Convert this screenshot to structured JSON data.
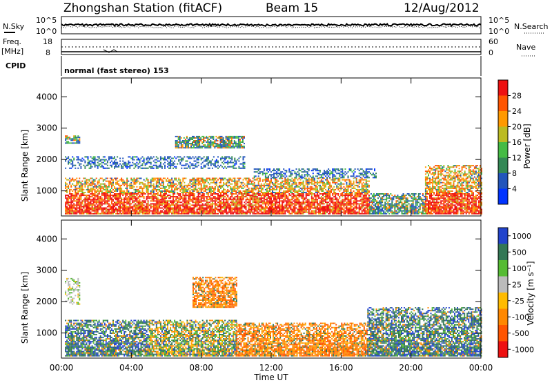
{
  "header": {
    "station": "Zhongshan Station (fitACF)",
    "beam": "Beam 15",
    "date": "12/Aug/2012"
  },
  "summary_panels": {
    "nsky": {
      "label": "N.Sky",
      "ticks": [
        "10^5",
        "10^0"
      ]
    },
    "nsearch": {
      "label": "N.Search",
      "ticks": [
        "10^5",
        "10^0"
      ]
    },
    "freq": {
      "label_line1": "Freq.",
      "label_line2": "[MHz]",
      "ticks": [
        "18",
        "8"
      ]
    },
    "nave": {
      "label": "Nave",
      "ticks": [
        "60",
        "0"
      ]
    },
    "cpid": {
      "label": "CPID",
      "value": "normal (fast stereo) 153"
    }
  },
  "colors": {
    "power_scale": [
      "#0033ff",
      "#2255bb",
      "#338855",
      "#44bb44",
      "#bbbb22",
      "#ff9900",
      "#ff5500",
      "#ee1111"
    ],
    "velocity_scale": [
      "#2244cc",
      "#337755",
      "#55bb33",
      "#bbbbbb",
      "#ffbb00",
      "#ff8800",
      "#ff5500",
      "#ee1111"
    ]
  },
  "chart_data": [
    {
      "type": "heatmap",
      "name": "power",
      "ylabel": "Slant Range [km]",
      "yticks": [
        "4000",
        "3000",
        "2000",
        "1000"
      ],
      "ylim": [
        200,
        4600
      ],
      "xlabel": "Time UT",
      "xticks": [
        "00:00",
        "04:00",
        "08:00",
        "12:00",
        "16:00",
        "20:00",
        "00:00"
      ],
      "xlim": [
        0,
        24
      ],
      "colorbar": {
        "label": "Power [dB]",
        "ticks": [
          "28",
          "24",
          "20",
          "16",
          "12",
          "8",
          "4"
        ]
      },
      "regions": [
        {
          "t0": 0.2,
          "t1": 17.6,
          "r0": 250,
          "r1": 1400,
          "level": "strong"
        },
        {
          "t0": 17.6,
          "t1": 20.8,
          "r0": 250,
          "r1": 900,
          "level": "moderate"
        },
        {
          "t0": 20.8,
          "t1": 24.0,
          "r0": 250,
          "r1": 1800,
          "level": "strong"
        },
        {
          "t0": 0.2,
          "t1": 10.5,
          "r0": 1700,
          "r1": 2100,
          "level": "weak"
        },
        {
          "t0": 0.2,
          "t1": 1.0,
          "r0": 2500,
          "r1": 2750,
          "level": "moderate"
        },
        {
          "t0": 6.5,
          "t1": 10.5,
          "r0": 2350,
          "r1": 2750,
          "level": "moderate"
        },
        {
          "t0": 11.0,
          "t1": 18.0,
          "r0": 1400,
          "r1": 1700,
          "level": "weak"
        }
      ]
    },
    {
      "type": "heatmap",
      "name": "velocity",
      "ylabel": "Slant Range [km]",
      "yticks": [
        "4000",
        "3000",
        "2000",
        "1000"
      ],
      "ylim": [
        200,
        4600
      ],
      "xlabel": "Time UT",
      "xticks": [
        "00:00",
        "04:00",
        "08:00",
        "12:00",
        "16:00",
        "20:00",
        "00:00"
      ],
      "xlim": [
        0,
        24
      ],
      "colorbar": {
        "label": "Velocity [m s⁻¹]",
        "ticks": [
          "1000",
          "500",
          "100",
          "25",
          "-25",
          "-100",
          "-500",
          "-1000"
        ]
      },
      "regions": [
        {
          "t0": 0.2,
          "t1": 5.0,
          "r0": 250,
          "r1": 1400,
          "level": "positive"
        },
        {
          "t0": 5.0,
          "t1": 10.0,
          "r0": 250,
          "r1": 1400,
          "level": "mixed"
        },
        {
          "t0": 10.0,
          "t1": 17.5,
          "r0": 250,
          "r1": 1300,
          "level": "negative"
        },
        {
          "t0": 17.5,
          "t1": 24.0,
          "r0": 250,
          "r1": 1800,
          "level": "positive"
        },
        {
          "t0": 0.2,
          "t1": 1.0,
          "r0": 1900,
          "r1": 2750,
          "level": "near-zero"
        },
        {
          "t0": 7.5,
          "t1": 10.0,
          "r0": 1800,
          "r1": 2750,
          "level": "negative"
        }
      ]
    }
  ]
}
